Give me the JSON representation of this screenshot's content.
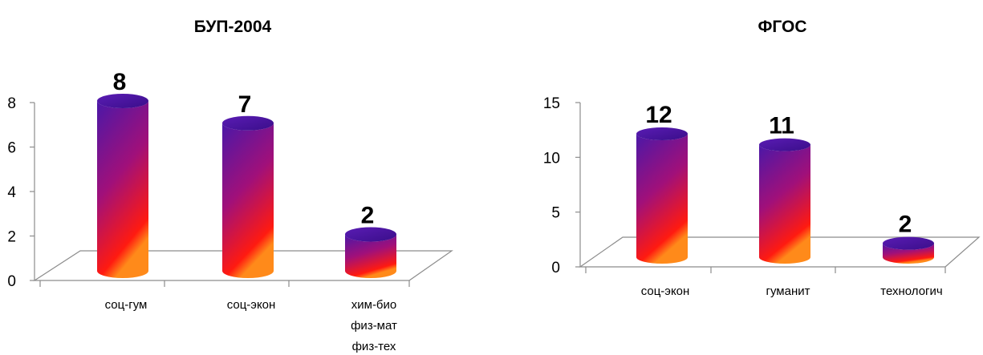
{
  "chart_data": [
    {
      "type": "bar",
      "title": "БУП-2004",
      "categories": [
        "соц-гум",
        "соц-экон",
        "хим-био\nфиз-мат\nфиз-тех"
      ],
      "values": [
        8,
        7,
        2
      ],
      "ylim": [
        0,
        8
      ],
      "yticks": [
        0,
        2,
        4,
        6,
        8
      ],
      "xlabel": "",
      "ylabel": "",
      "grid": false
    },
    {
      "type": "bar",
      "title": "ФГОС",
      "categories": [
        "соц-экон",
        "гуманит",
        "технологич"
      ],
      "values": [
        12,
        11,
        2
      ],
      "ylim": [
        0,
        15
      ],
      "yticks": [
        0,
        5,
        10,
        15
      ],
      "xlabel": "",
      "ylabel": "",
      "grid": false
    }
  ],
  "colors": {
    "bar_top": "#4a18a8",
    "bar_mid": "#a0107a",
    "bar_bottom": "#ff1a10",
    "highlight": "#ff8a1a"
  }
}
